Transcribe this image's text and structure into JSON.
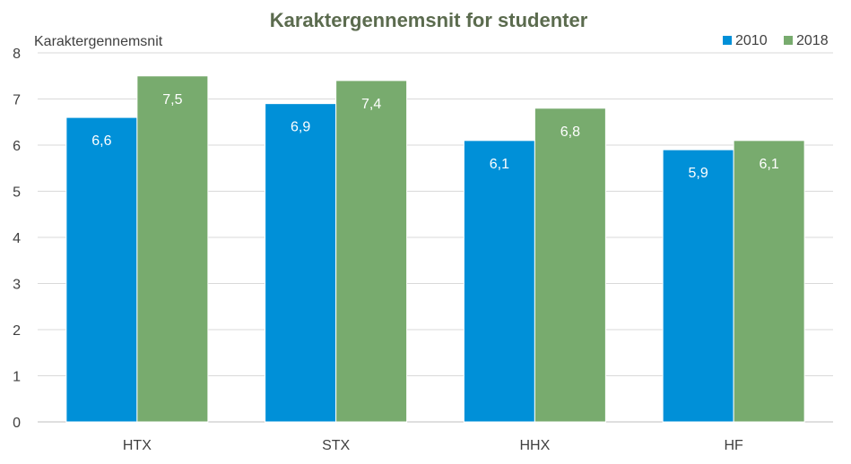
{
  "chart_data": {
    "type": "bar",
    "title": "Karaktergennemsnit for studenter",
    "ylabel": "Karaktergennemsnit",
    "xlabel": "",
    "categories": [
      "HTX",
      "STX",
      "HHX",
      "HF"
    ],
    "series": [
      {
        "name": "2010",
        "color": "#0090d8",
        "values": [
          6.6,
          6.9,
          6.1,
          5.9
        ],
        "labels": [
          "6,6",
          "6,9",
          "6,1",
          "5,9"
        ]
      },
      {
        "name": "2018",
        "color": "#78ab6e",
        "values": [
          7.5,
          7.4,
          6.8,
          6.1
        ],
        "labels": [
          "7,5",
          "7,4",
          "6,8",
          "6,1"
        ]
      }
    ],
    "ylim": [
      0,
      8
    ],
    "yticks": [
      "0",
      "1",
      "2",
      "3",
      "4",
      "5",
      "6",
      "7",
      "8"
    ],
    "grid": true,
    "legend_position": "top-right"
  }
}
